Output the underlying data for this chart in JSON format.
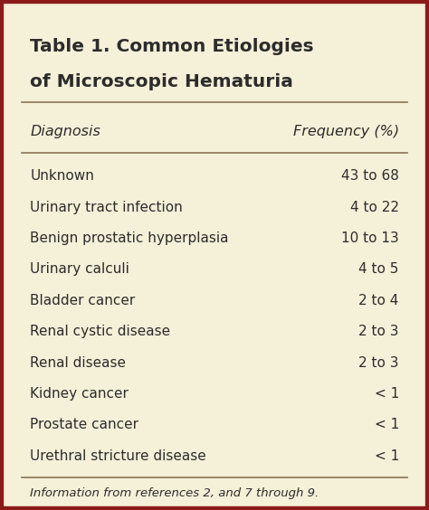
{
  "title_line1": "Table 1. Common Etiologies",
  "title_line2": "of Microscopic Hematuria",
  "col1_header": "Diagnosis",
  "col2_header": "Frequency (%)",
  "rows": [
    [
      "Unknown",
      "43 to 68"
    ],
    [
      "Urinary tract infection",
      "4 to 22"
    ],
    [
      "Benign prostatic hyperplasia",
      "10 to 13"
    ],
    [
      "Urinary calculi",
      "4 to 5"
    ],
    [
      "Bladder cancer",
      "2 to 4"
    ],
    [
      "Renal cystic disease",
      "2 to 3"
    ],
    [
      "Renal disease",
      "2 to 3"
    ],
    [
      "Kidney cancer",
      "< 1"
    ],
    [
      "Prostate cancer",
      "< 1"
    ],
    [
      "Urethral stricture disease",
      "< 1"
    ]
  ],
  "footnote": "Information from references 2, and 7 through 9.",
  "bg_color": "#F5F0D8",
  "border_color": "#8B1A1A",
  "text_color": "#2C2C2C",
  "title_color": "#2C2C2C",
  "header_color": "#2C2C2C",
  "line_color": "#8B7355",
  "title_fontsize": 14.5,
  "header_fontsize": 11.5,
  "row_fontsize": 11.0,
  "footnote_fontsize": 9.5
}
